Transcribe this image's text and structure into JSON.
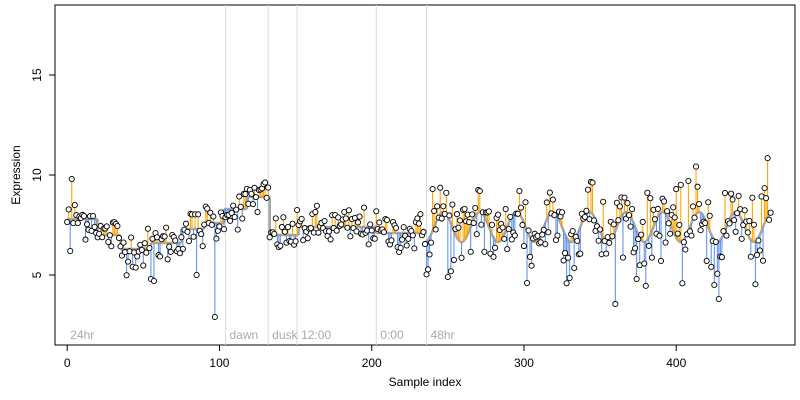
{
  "chart_data": {
    "type": "scatter",
    "title": "",
    "xlabel": "Sample index",
    "ylabel": "Expression",
    "xlim": [
      -8,
      478
    ],
    "ylim": [
      1.5,
      18.5
    ],
    "x_ticks": [
      0,
      100,
      200,
      300,
      400
    ],
    "x_tick_labels": [
      "0",
      "100",
      "200",
      "300",
      "400"
    ],
    "y_ticks": [
      5,
      10,
      15
    ],
    "y_tick_labels": [
      "5",
      "10",
      "15"
    ],
    "grid": false,
    "legend": "none",
    "baseline_series": {
      "color": "#a6a6a6",
      "segments": [
        {
          "x": [
            0,
            130
          ],
          "y": 7.8
        },
        {
          "x": [
            131,
            133
          ],
          "y": 7.8
        },
        {
          "x": [
            133,
            134
          ],
          "y": [
            7.8,
            7.0
          ]
        },
        {
          "x": [
            134,
            148
          ],
          "y": 7.0
        },
        {
          "x": [
            148,
            152
          ],
          "y": [
            7.0,
            7.4
          ]
        },
        {
          "x": [
            152,
            200
          ],
          "y": 7.4
        },
        {
          "x": [
            200,
            235
          ],
          "y": 7.2
        }
      ],
      "oscillation": {
        "x_start": 235,
        "x_end": 462,
        "center": 7.4,
        "amplitude": 0.75,
        "period": 24,
        "phase_x": 241
      }
    },
    "regions": [
      {
        "x": [
          0,
          20
        ],
        "y": 7.8
      },
      {
        "x": [
          20,
          35
        ],
        "y": 7.0
      },
      {
        "x": [
          35,
          55
        ],
        "y": 6.3
      },
      {
        "x": [
          55,
          75
        ],
        "y": 6.6
      },
      {
        "x": [
          75,
          90
        ],
        "y": 7.3
      },
      {
        "x": [
          90,
          103
        ],
        "y": 7.6
      },
      {
        "x": [
          103,
          118
        ],
        "y": 8.3
      },
      {
        "x": [
          118,
          133
        ],
        "y": 8.9
      },
      {
        "x": [
          133,
          152
        ],
        "y": 7.0
      },
      {
        "x": [
          152,
          203
        ],
        "y": 7.4
      },
      {
        "x": [
          203,
          236
        ],
        "y": 7.1
      }
    ],
    "up_color": "#ffa500",
    "down_color": "#6495ed",
    "point_count": 463,
    "point_style": {
      "fill": "#ffffff",
      "stroke": "#000000"
    },
    "outliers": [
      {
        "x": 3,
        "y": 9.8
      },
      {
        "x": 2,
        "y": 6.2
      },
      {
        "x": 97,
        "y": 2.9
      },
      {
        "x": 85,
        "y": 5.0
      },
      {
        "x": 57,
        "y": 4.7
      },
      {
        "x": 55,
        "y": 4.8
      },
      {
        "x": 428,
        "y": 3.8
      },
      {
        "x": 425,
        "y": 4.5
      },
      {
        "x": 374,
        "y": 4.8
      },
      {
        "x": 250,
        "y": 4.9
      },
      {
        "x": 302,
        "y": 4.6
      },
      {
        "x": 240,
        "y": 9.3
      },
      {
        "x": 271,
        "y": 9.2
      },
      {
        "x": 408,
        "y": 9.7
      }
    ],
    "vertical_markers": [
      {
        "x": 104,
        "label": "dawn"
      },
      {
        "x": 132,
        "label": "dusk"
      },
      {
        "x": 151,
        "label": "12:00"
      },
      {
        "x": 203,
        "label": "0:00"
      },
      {
        "x": 236,
        "label": "48hr"
      }
    ],
    "corner_label": {
      "x": 2,
      "label": "24hr"
    },
    "annotation_y": 2.0,
    "marker_color": "#d9d9d9",
    "annotation_color": "#aaaaaa"
  }
}
